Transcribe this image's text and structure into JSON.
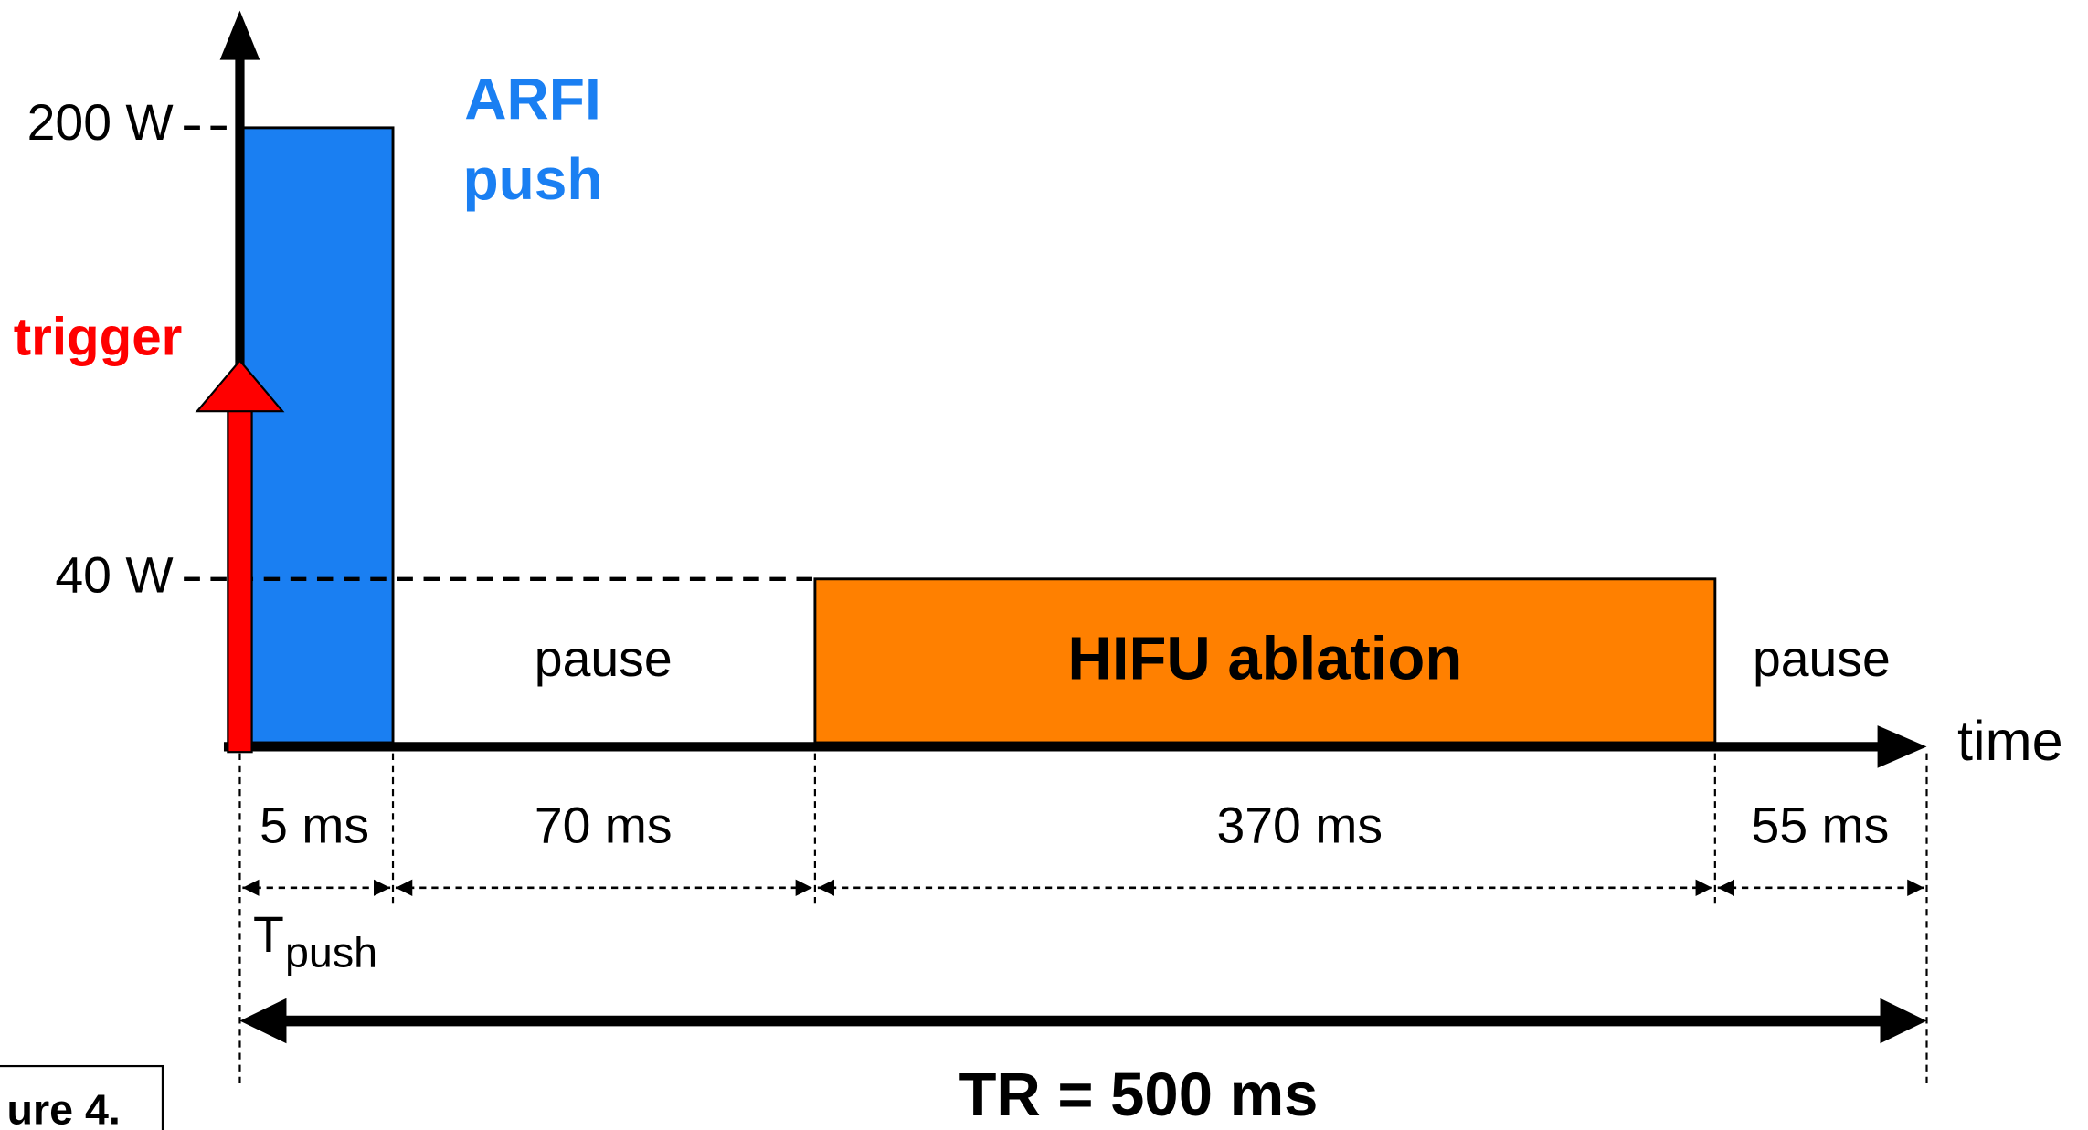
{
  "axis": {
    "y_ticks": [
      "200 W",
      "40 W"
    ],
    "x_label": "time"
  },
  "labels": {
    "arfi": [
      "ARFI",
      "push"
    ],
    "trigger": "trigger",
    "pause_1": "pause",
    "hifu": "HIFU ablation",
    "pause_2": "pause"
  },
  "durations": [
    "5 ms",
    "70 ms",
    "370 ms",
    "55 ms"
  ],
  "t_push": {
    "main": "T",
    "sub": "push"
  },
  "total": "TR = 500 ms",
  "caption": "ure 4."
}
